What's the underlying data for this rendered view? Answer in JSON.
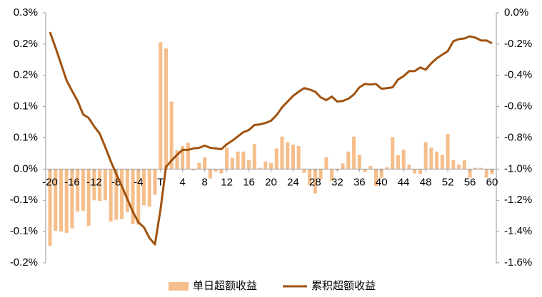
{
  "chart_data": {
    "type": "bar-line",
    "categories": [
      "-20",
      null,
      null,
      null,
      "-16",
      null,
      null,
      null,
      "-12",
      null,
      null,
      null,
      "-8",
      null,
      null,
      null,
      "-4",
      null,
      null,
      null,
      "T",
      null,
      null,
      null,
      "4",
      null,
      null,
      null,
      "8",
      null,
      null,
      null,
      "12",
      null,
      null,
      null,
      "16",
      null,
      null,
      null,
      "20",
      null,
      null,
      null,
      "24",
      null,
      null,
      null,
      "28",
      null,
      null,
      null,
      "32",
      null,
      null,
      null,
      "36",
      null,
      null,
      null,
      "40",
      null,
      null,
      null,
      "44",
      null,
      null,
      null,
      "48",
      null,
      null,
      null,
      "52",
      null,
      null,
      null,
      "56",
      null,
      null,
      null,
      "60"
    ],
    "series": [
      {
        "name": "单日超额收益",
        "type": "bar",
        "color": "#f5be8a",
        "values": [
          -0.123,
          -0.099,
          -0.1,
          -0.102,
          -0.095,
          -0.068,
          -0.067,
          -0.091,
          -0.05,
          -0.051,
          -0.05,
          -0.084,
          -0.081,
          -0.08,
          -0.069,
          -0.088,
          -0.089,
          -0.058,
          -0.06,
          -0.041,
          0.203,
          0.193,
          0.108,
          0.03,
          0.037,
          0.042,
          -0.002,
          0.01,
          0.019,
          -0.015,
          -0.004,
          -0.007,
          0.034,
          0.018,
          0.028,
          0.028,
          0.014,
          0.04,
          0.002,
          0.012,
          0.01,
          0.033,
          0.052,
          0.043,
          0.039,
          0.037,
          -0.006,
          -0.026,
          -0.039,
          -0.016,
          0.019,
          -0.019,
          -0.002,
          0.009,
          0.028,
          0.052,
          0.023,
          -0.005,
          0.005,
          -0.027,
          -0.014,
          0.003,
          0.051,
          0.022,
          0.031,
          0.007,
          -0.007,
          -0.008,
          0.043,
          0.034,
          0.028,
          0.023,
          0.056,
          0.014,
          0.007,
          0.014,
          -0.014,
          0.002,
          0.002,
          -0.014,
          -0.008
        ]
      },
      {
        "name": "累积超额收益",
        "type": "line",
        "axis": "y2",
        "color": "#a0520f",
        "values": [
          -0.123,
          -0.223,
          -0.327,
          -0.432,
          -0.5,
          -0.564,
          -0.65,
          -0.673,
          -0.727,
          -0.773,
          -0.859,
          -0.95,
          -1.032,
          -1.109,
          -1.191,
          -1.273,
          -1.341,
          -1.373,
          -1.441,
          -1.482,
          -1.259,
          -0.986,
          -0.945,
          -0.909,
          -0.877,
          -0.877,
          -0.868,
          -0.864,
          -0.85,
          -0.864,
          -0.868,
          -0.873,
          -0.841,
          -0.818,
          -0.791,
          -0.764,
          -0.75,
          -0.718,
          -0.714,
          -0.705,
          -0.691,
          -0.655,
          -0.605,
          -0.568,
          -0.532,
          -0.505,
          -0.482,
          -0.491,
          -0.505,
          -0.541,
          -0.559,
          -0.536,
          -0.568,
          -0.564,
          -0.55,
          -0.523,
          -0.477,
          -0.455,
          -0.459,
          -0.455,
          -0.486,
          -0.482,
          -0.477,
          -0.427,
          -0.405,
          -0.373,
          -0.373,
          -0.35,
          -0.364,
          -0.323,
          -0.291,
          -0.268,
          -0.245,
          -0.182,
          -0.168,
          -0.164,
          -0.15,
          -0.159,
          -0.177,
          -0.177,
          -0.195
        ]
      }
    ],
    "ylim": [
      -0.15,
      0.25
    ],
    "yticks": [
      {
        "value": 0.25,
        "label": "0.3%"
      },
      {
        "value": 0.2,
        "label": "0.2%"
      },
      {
        "value": 0.15,
        "label": "0.2%"
      },
      {
        "value": 0.1,
        "label": "0.1%"
      },
      {
        "value": 0.05,
        "label": "0.1%"
      },
      {
        "value": 0,
        "label": "0.0%"
      },
      {
        "value": -0.05,
        "label": "-0.1%"
      },
      {
        "value": -0.1,
        "label": "-0.1%"
      },
      {
        "value": -0.15,
        "label": "-0.2%"
      }
    ],
    "y2lim": [
      -1.6,
      0
    ],
    "y2ticks": [
      {
        "value": 0,
        "label": "0.0%"
      },
      {
        "value": -0.2,
        "label": "-0.2%"
      },
      {
        "value": -0.4,
        "label": "-0.4%"
      },
      {
        "value": -0.6,
        "label": "-0.6%"
      },
      {
        "value": -0.8,
        "label": "-0.8%"
      },
      {
        "value": -1.0,
        "label": "-1.0%"
      },
      {
        "value": -1.2,
        "label": "-1.2%"
      },
      {
        "value": -1.4,
        "label": "-1.4%"
      },
      {
        "value": -1.6,
        "label": "-1.6%"
      }
    ],
    "legend": "bottom"
  }
}
